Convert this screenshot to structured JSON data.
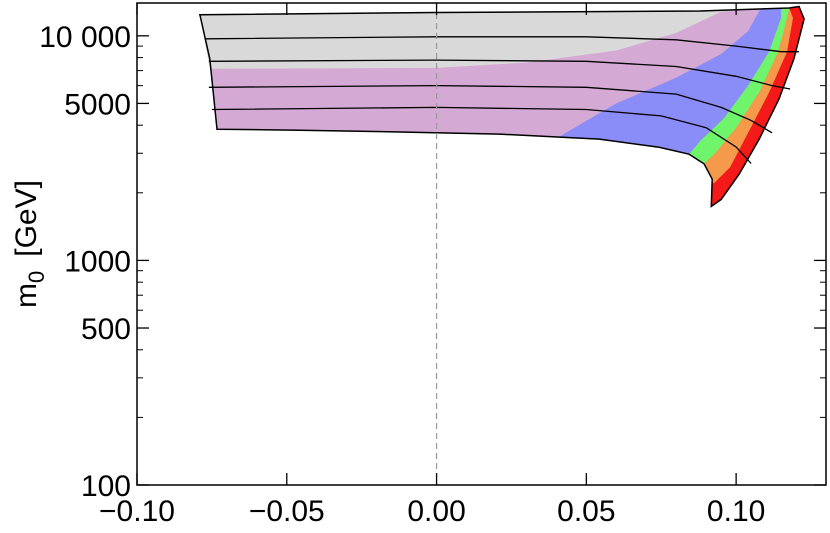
{
  "chart_data": {
    "type": "region",
    "ylabel": {
      "main": "m",
      "sub": "0",
      "unit": "[GeV]"
    },
    "xlim": [
      -0.1,
      0.13
    ],
    "ylim": [
      100,
      14000
    ],
    "log_y": true,
    "xticks": [
      {
        "value": -0.1,
        "label": "−0.10"
      },
      {
        "value": -0.05,
        "label": "−0.05"
      },
      {
        "value": 0,
        "label": "0.00"
      },
      {
        "value": 0.05,
        "label": "0.05"
      },
      {
        "value": 0.1,
        "label": "0.10"
      }
    ],
    "yticks": [
      100,
      500,
      1000,
      5000,
      {
        "value": 10000,
        "label": "10 000"
      }
    ],
    "yminorticks": [
      200,
      300,
      400,
      600,
      700,
      800,
      900,
      2000,
      3000,
      4000,
      6000,
      7000,
      8000,
      9000
    ],
    "vline": {
      "x": 0,
      "color": "#999999"
    },
    "regions": [
      {
        "color": "#f51a1a",
        "x": [
          -0.079,
          0.0,
          0.088,
          0.1177,
          0.121,
          0.1227,
          0.1193,
          0.1143,
          0.1077,
          0.101,
          0.095,
          0.0917,
          0.092,
          0.0893,
          0.0843,
          0.0743,
          0.0543,
          0.021,
          -0.0123,
          -0.0457,
          -0.0733,
          -0.0757
        ],
        "values": [
          12400,
          12700,
          12900,
          13300,
          13500,
          11900,
          7890,
          5230,
          3470,
          2420,
          1870,
          1740,
          2300,
          2690,
          2970,
          3190,
          3470,
          3650,
          3730,
          3800,
          3840,
          7890
        ]
      },
      {
        "color": "#f5994a",
        "x": [
          -0.079,
          0.0,
          0.088,
          0.1177,
          0.119,
          0.117,
          0.111,
          0.104,
          0.098,
          0.0925,
          0.0893,
          0.0843,
          0.0743,
          0.0543,
          0.021,
          -0.0123,
          -0.0457,
          -0.0733,
          -0.0757
        ],
        "values": [
          12400,
          12700,
          12900,
          13300,
          12000,
          8500,
          5600,
          3700,
          2600,
          2200,
          2690,
          2970,
          3190,
          3470,
          3650,
          3730,
          3800,
          3840,
          7890
        ]
      },
      {
        "color": "#6ef56b",
        "x": [
          -0.079,
          0.0,
          0.088,
          0.1177,
          0.117,
          0.114,
          0.108,
          0.1,
          0.093,
          0.0893,
          0.0843,
          0.0743,
          0.0543,
          0.021,
          -0.0123,
          -0.0457,
          -0.0733,
          -0.0757
        ],
        "values": [
          12400,
          12700,
          12900,
          13300,
          12000,
          8500,
          5700,
          3900,
          3000,
          2690,
          2970,
          3190,
          3470,
          3650,
          3730,
          3800,
          3840,
          7890
        ]
      },
      {
        "color": "#8a8cf7",
        "x": [
          -0.079,
          0.0,
          0.088,
          0.115,
          0.115,
          0.111,
          0.104,
          0.096,
          0.088,
          0.0843,
          0.0743,
          0.0543,
          0.021,
          -0.0123,
          -0.0457,
          -0.0733,
          -0.0757
        ],
        "values": [
          12400,
          12700,
          12900,
          13200,
          12000,
          8500,
          6000,
          4300,
          3400,
          2970,
          3190,
          3470,
          3650,
          3730,
          3800,
          3840,
          7890
        ]
      },
      {
        "color": "#d4a9d4",
        "x": [
          -0.079,
          0.0,
          0.088,
          0.108,
          0.104,
          0.095,
          0.08,
          0.06,
          0.041,
          0.021,
          -0.0123,
          -0.0457,
          -0.0733,
          -0.0757
        ],
        "values": [
          12400,
          12700,
          12900,
          13100,
          10500,
          8300,
          6500,
          5000,
          3560,
          3650,
          3730,
          3800,
          3840,
          7890
        ]
      },
      {
        "color": "#d9d9d9",
        "x": [
          -0.079,
          0.0,
          0.088,
          0.1,
          0.095,
          0.08,
          0.06,
          0.03,
          0.0,
          -0.0757
        ],
        "values": [
          12400,
          12700,
          12900,
          13000,
          12800,
          10300,
          8600,
          7600,
          7200,
          7130
        ]
      }
    ],
    "contours": [
      {
        "color": "#000000",
        "x": [
          -0.077,
          0.0,
          0.05,
          0.08,
          0.1,
          0.115,
          0.121
        ],
        "values": [
          9700,
          9900,
          9900,
          9600,
          9000,
          8500,
          8500
        ]
      },
      {
        "color": "#000000",
        "x": [
          -0.076,
          0.0,
          0.05,
          0.08,
          0.1,
          0.112,
          0.118
        ],
        "values": [
          7700,
          7800,
          7700,
          7300,
          6600,
          6000,
          5800
        ]
      },
      {
        "color": "#000000",
        "x": [
          -0.076,
          0.0,
          0.05,
          0.08,
          0.095,
          0.105,
          0.112
        ],
        "values": [
          5900,
          6000,
          5900,
          5500,
          4800,
          4200,
          3700
        ]
      },
      {
        "color": "#000000",
        "x": [
          -0.075,
          0.0,
          0.05,
          0.075,
          0.09,
          0.1,
          0.105
        ],
        "values": [
          4700,
          4800,
          4700,
          4400,
          3900,
          3200,
          2700
        ]
      }
    ]
  }
}
